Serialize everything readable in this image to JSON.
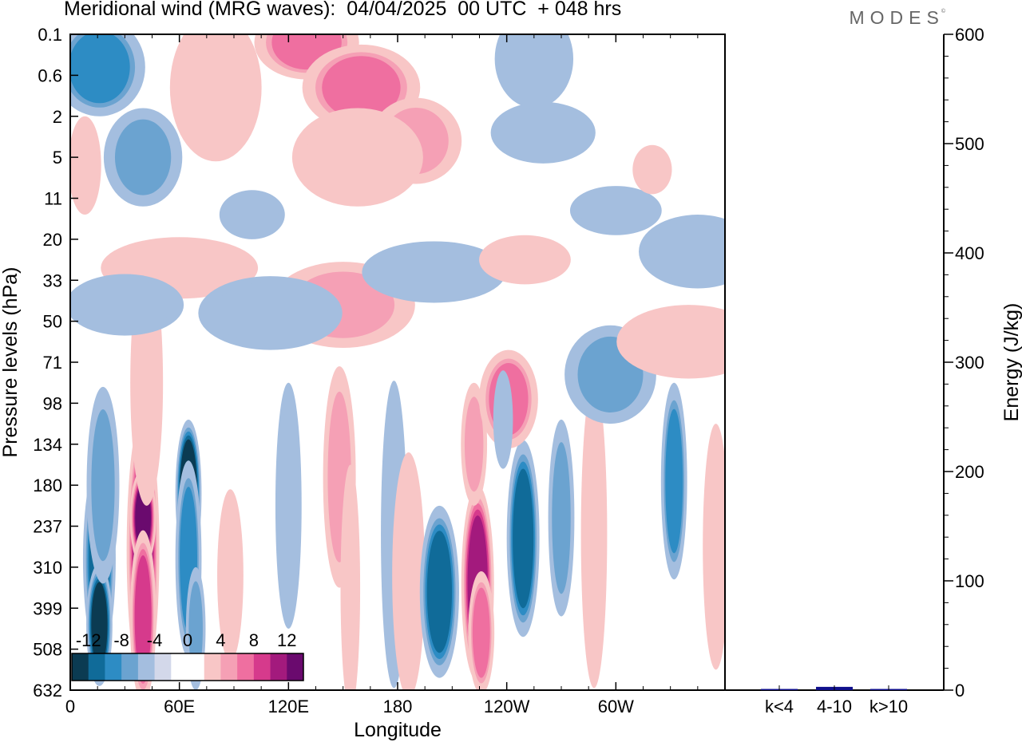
{
  "header": {
    "title": "Meridional wind (MRG waves):  04/04/2025  00 UTC  + 048 hrs",
    "brand": "MODES",
    "brand_mark": "©"
  },
  "colorbar": {
    "labels": [
      "-12",
      "-8",
      "-4",
      "0",
      "4",
      "8",
      "12"
    ],
    "colors": [
      "#0b3b52",
      "#106b99",
      "#2d8cc4",
      "#6ba3d0",
      "#a4bedf",
      "#d3d8ea",
      "#ffffff",
      "#ffffff",
      "#f8c6c6",
      "#f5a0b5",
      "#ef6fa0",
      "#d63a8c",
      "#a31a7d",
      "#6a0a6e"
    ]
  },
  "chart_data": [
    {
      "type": "heatmap",
      "title": "Meridional wind (MRG waves):  04/04/2025  00 UTC  + 048 hrs",
      "xlabel": "Longitude",
      "ylabel": "Pressure levels (hPa)",
      "xticks": [
        "0",
        "60E",
        "120E",
        "180",
        "120W",
        "60W"
      ],
      "yticks": [
        "0.1",
        "0.6",
        "2",
        "5",
        "11",
        "20",
        "33",
        "50",
        "71",
        "98",
        "134",
        "180",
        "237",
        "310",
        "399",
        "508",
        "632"
      ],
      "xlim": [
        0,
        360
      ],
      "levels": [
        -12,
        -10,
        -8,
        -6,
        -4,
        -2,
        0,
        2,
        4,
        6,
        8,
        10,
        12
      ],
      "blobs": [
        {
          "lon": 16,
          "level": 12.8,
          "value": -9,
          "wlon": 5,
          "wlev": 1.6
        },
        {
          "lon": 16,
          "level": 14.4,
          "value": -10,
          "wlon": 4,
          "wlev": 1.0
        },
        {
          "lon": 18,
          "level": 11.0,
          "value": -4,
          "wlon": 5,
          "wlev": 1.6
        },
        {
          "lon": 40,
          "level": 12.6,
          "value": 11,
          "wlon": 5,
          "wlev": 2.2
        },
        {
          "lon": 40,
          "level": 11.8,
          "value": 12,
          "wlon": 4,
          "wlev": 0.8
        },
        {
          "lon": 40,
          "level": 14.2,
          "value": 9,
          "wlon": 4,
          "wlev": 1.4
        },
        {
          "lon": 42,
          "level": 8.5,
          "value": 3,
          "wlon": 5,
          "wlev": 2.0
        },
        {
          "lon": 65,
          "level": 11.2,
          "value": -12,
          "wlon": 4,
          "wlev": 1.2
        },
        {
          "lon": 65,
          "level": 12.8,
          "value": -7,
          "wlon": 4,
          "wlev": 1.6
        },
        {
          "lon": 69,
          "level": 14.5,
          "value": -4,
          "wlon": 3,
          "wlev": 1.0
        },
        {
          "lon": 88,
          "level": 13.2,
          "value": 3,
          "wlon": 4,
          "wlev": 1.4
        },
        {
          "lon": 120,
          "level": 11.5,
          "value": -2,
          "wlon": 4,
          "wlev": 2.0
        },
        {
          "lon": 148,
          "level": 10.8,
          "value": 4,
          "wlon": 5,
          "wlev": 1.8
        },
        {
          "lon": 154,
          "level": 13.5,
          "value": 2,
          "wlon": 3,
          "wlev": 2.0
        },
        {
          "lon": 178,
          "level": 12.2,
          "value": -2,
          "wlon": 4,
          "wlev": 2.5
        },
        {
          "lon": 186,
          "level": 13.2,
          "value": 3,
          "wlon": 5,
          "wlev": 2.0
        },
        {
          "lon": 203,
          "level": 13.6,
          "value": -8,
          "wlon": 6,
          "wlev": 1.4
        },
        {
          "lon": 224,
          "level": 13.4,
          "value": 11,
          "wlon": 5,
          "wlev": 1.6
        },
        {
          "lon": 222,
          "level": 10.0,
          "value": 4,
          "wlon": 4,
          "wlev": 1.0
        },
        {
          "lon": 226,
          "level": 14.6,
          "value": 6,
          "wlon": 4,
          "wlev": 1.0
        },
        {
          "lon": 249,
          "level": 12.3,
          "value": -8,
          "wlon": 5,
          "wlev": 1.6
        },
        {
          "lon": 241,
          "level": 8.9,
          "value": 7,
          "wlon": 9,
          "wlev": 0.8
        },
        {
          "lon": 238,
          "level": 9.4,
          "value": -3,
          "wlon": 3,
          "wlev": 0.8
        },
        {
          "lon": 270,
          "level": 11.8,
          "value": -5,
          "wlon": 4,
          "wlev": 1.6
        },
        {
          "lon": 288,
          "level": 12.2,
          "value": 3,
          "wlon": 4,
          "wlev": 2.5
        },
        {
          "lon": 297,
          "level": 8.3,
          "value": -4,
          "wlon": 14,
          "wlev": 0.8
        },
        {
          "lon": 332,
          "level": 10.9,
          "value": -6,
          "wlon": 4,
          "wlev": 1.6
        },
        {
          "lon": 355,
          "level": 12.5,
          "value": 2,
          "wlon": 4,
          "wlev": 2.0
        },
        {
          "lon": 16,
          "level": 0.8,
          "value": -7,
          "wlon": 14,
          "wlev": 0.8
        },
        {
          "lon": 40,
          "level": 3.0,
          "value": -4,
          "wlon": 12,
          "wlev": 0.8
        },
        {
          "lon": 130,
          "level": 0.2,
          "value": 6,
          "wlon": 16,
          "wlev": 0.6
        },
        {
          "lon": 160,
          "level": 1.3,
          "value": 7,
          "wlon": 18,
          "wlev": 0.7
        },
        {
          "lon": 190,
          "level": 2.6,
          "value": 5,
          "wlon": 14,
          "wlev": 0.7
        },
        {
          "lon": 158,
          "level": 3.0,
          "value": 3,
          "wlon": 20,
          "wlev": 0.8
        },
        {
          "lon": 80,
          "level": 1.3,
          "value": 3,
          "wlon": 14,
          "wlev": 1.2
        },
        {
          "lon": 255,
          "level": 0.6,
          "value": -3,
          "wlon": 12,
          "wlev": 0.8
        },
        {
          "lon": 260,
          "level": 2.4,
          "value": -3,
          "wlon": 16,
          "wlev": 0.5
        },
        {
          "lon": 150,
          "level": 6.6,
          "value": 4,
          "wlon": 22,
          "wlev": 0.7
        },
        {
          "lon": 60,
          "level": 5.7,
          "value": 3,
          "wlon": 24,
          "wlev": 0.5
        },
        {
          "lon": 110,
          "level": 6.8,
          "value": -3,
          "wlon": 22,
          "wlev": 0.6
        },
        {
          "lon": 200,
          "level": 5.8,
          "value": -2,
          "wlon": 22,
          "wlev": 0.5
        },
        {
          "lon": 340,
          "level": 7.5,
          "value": 3,
          "wlon": 22,
          "wlev": 0.6
        },
        {
          "lon": 345,
          "level": 5.3,
          "value": -2,
          "wlon": 18,
          "wlev": 0.6
        },
        {
          "lon": 300,
          "level": 4.3,
          "value": -2,
          "wlon": 14,
          "wlev": 0.4
        },
        {
          "lon": 250,
          "level": 5.5,
          "value": 2,
          "wlon": 14,
          "wlev": 0.4
        },
        {
          "lon": 30,
          "level": 6.6,
          "value": -2,
          "wlon": 18,
          "wlev": 0.5
        },
        {
          "lon": 320,
          "level": 3.3,
          "value": 3,
          "wlon": 6,
          "wlev": 0.4
        },
        {
          "lon": 100,
          "level": 4.4,
          "value": -2,
          "wlon": 10,
          "wlev": 0.4
        },
        {
          "lon": 8,
          "level": 3.2,
          "value": 2,
          "wlon": 5,
          "wlev": 0.8
        }
      ]
    },
    {
      "type": "bar",
      "title": "",
      "xlabel": "",
      "ylabel": "Energy (J/kg)",
      "categories": [
        "k<4",
        "4-10",
        "k>10"
      ],
      "values": [
        0.5,
        3,
        0.3
      ],
      "ylim": [
        0,
        600
      ],
      "yticks": [
        0,
        100,
        200,
        300,
        400,
        500,
        600
      ],
      "bar_color": "#10108c"
    }
  ]
}
